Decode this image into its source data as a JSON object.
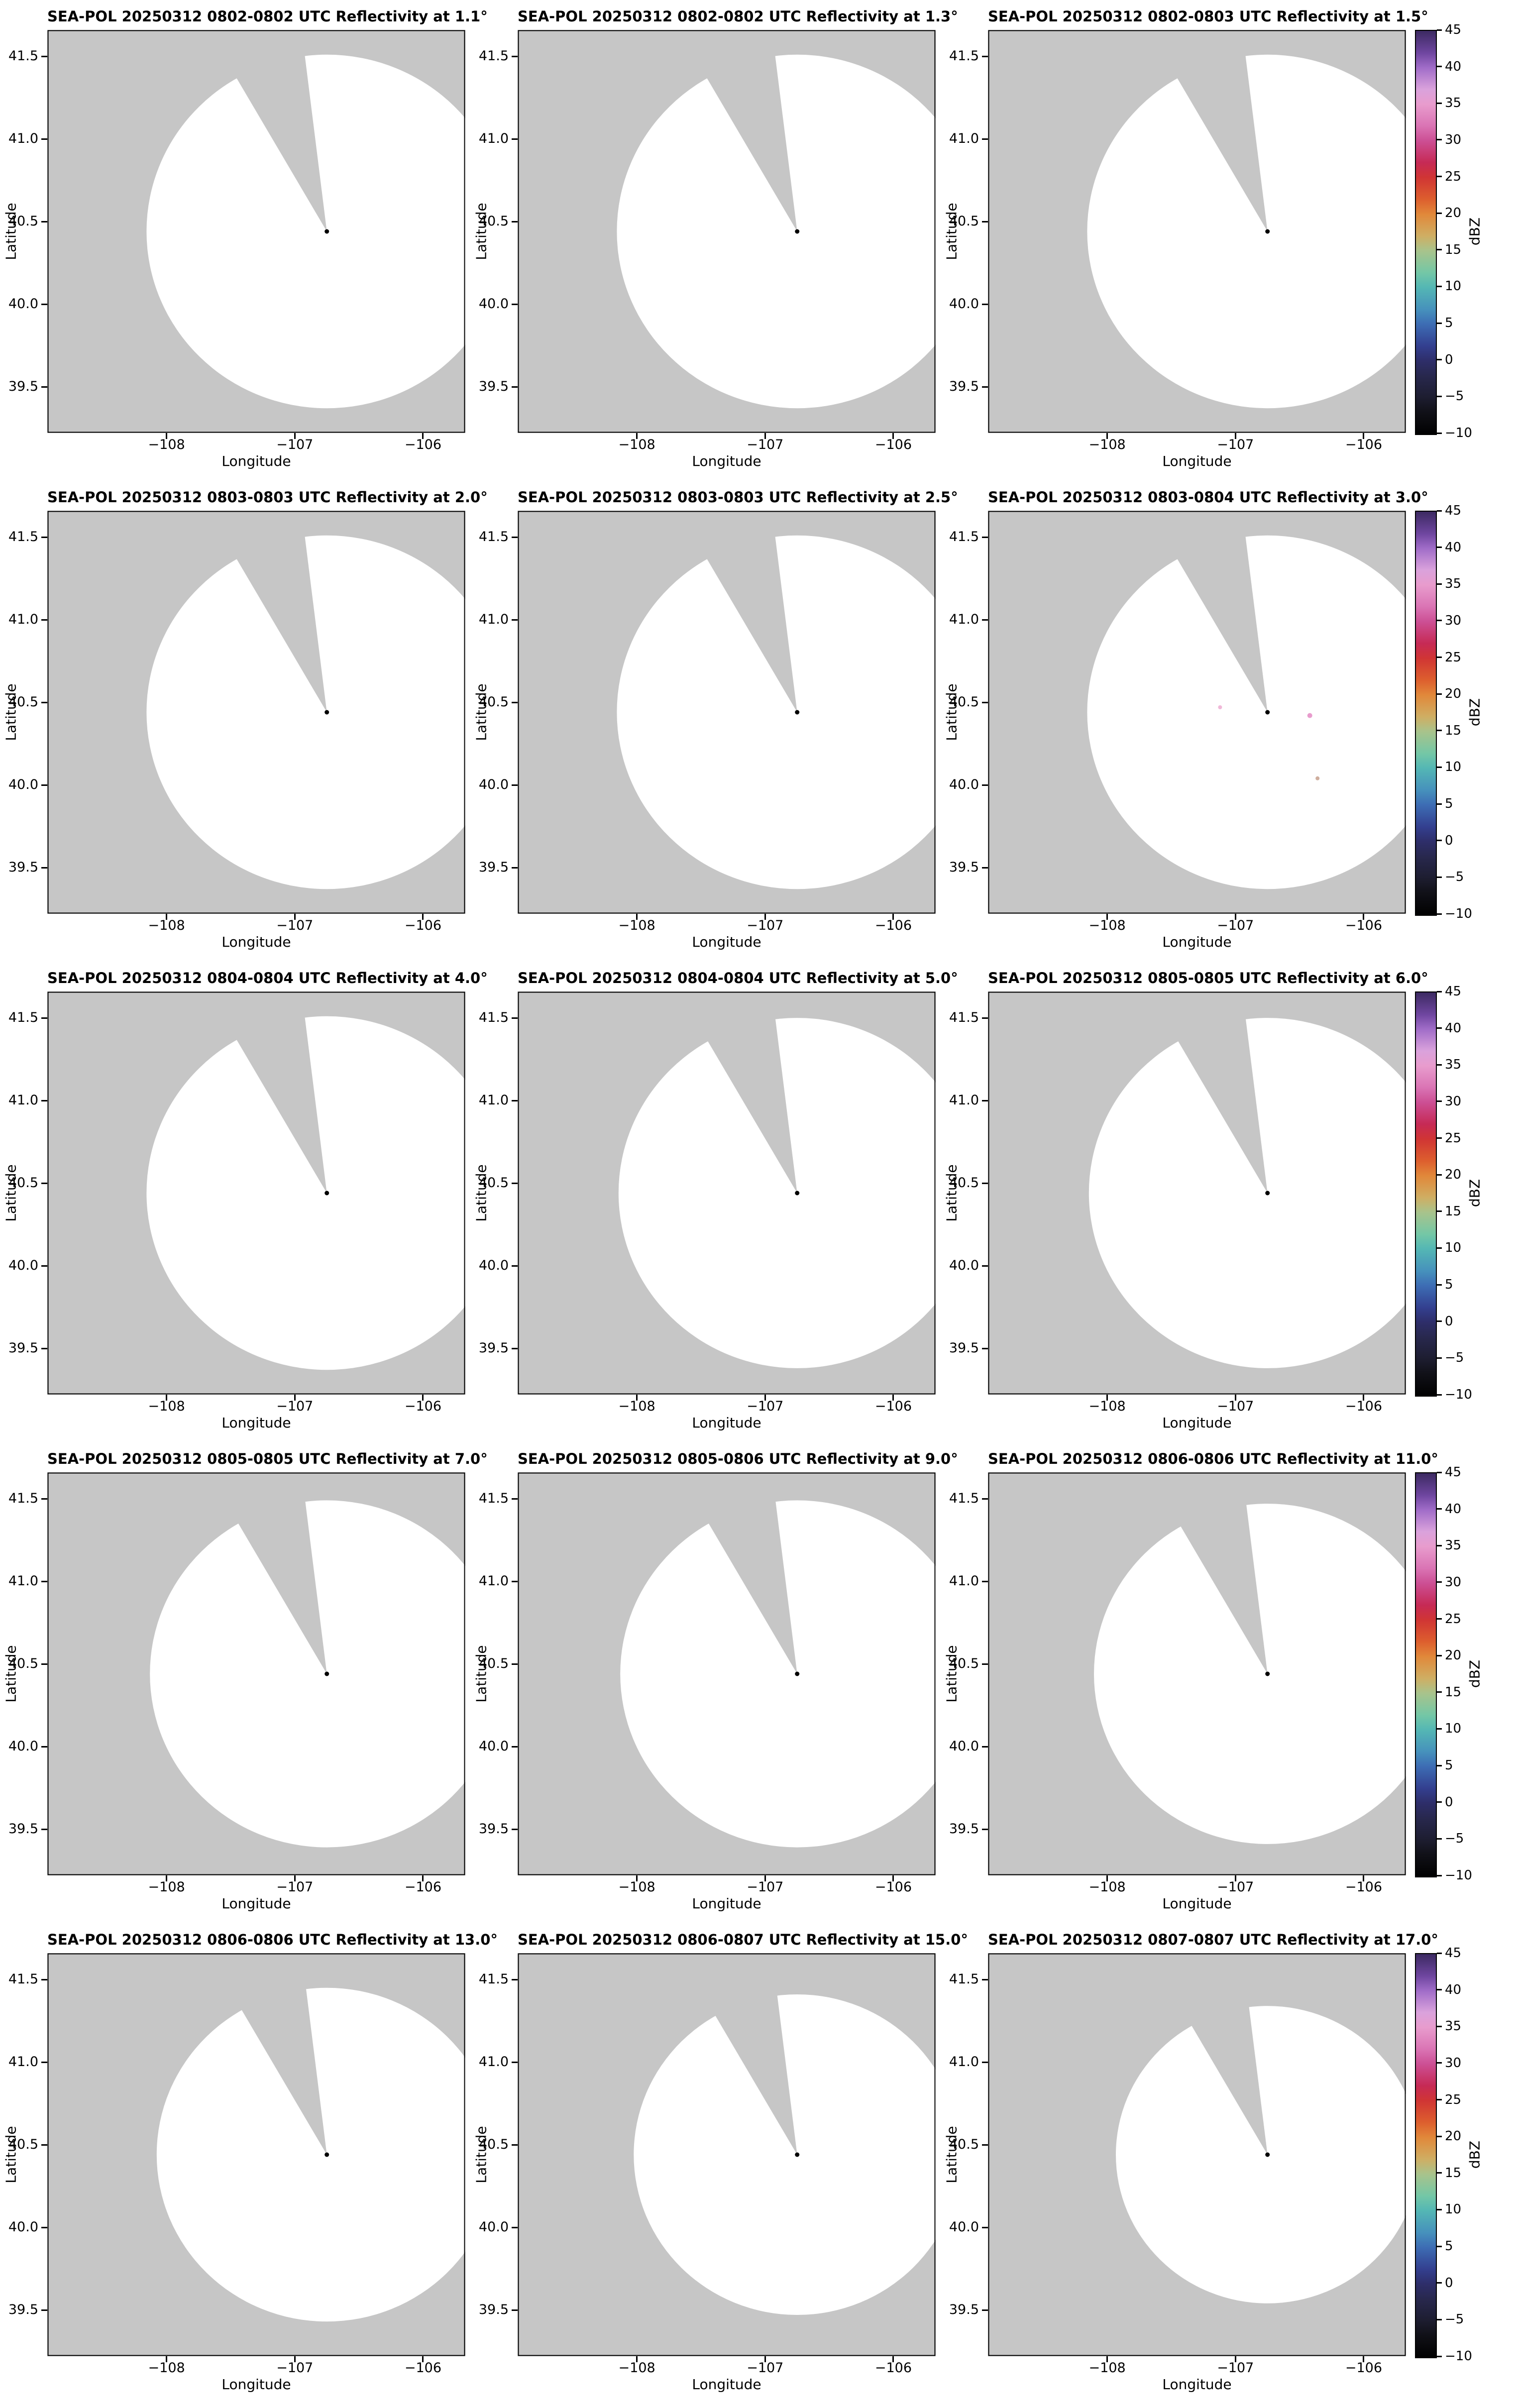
{
  "chart_data": {
    "type": "radar_ppi_small_multiples",
    "instrument": "SEA-POL",
    "date": "20250312",
    "grid": {
      "rows": 5,
      "cols": 3
    },
    "figure": {
      "xlabel": "Longitude",
      "ylabel": "Latitude",
      "xtick_labels": [
        "−108",
        "−107",
        "−106"
      ],
      "xtick_values": [
        -108,
        -107,
        -106
      ],
      "ytick_labels": [
        "39.5",
        "40.0",
        "40.5",
        "41.0",
        "41.5"
      ],
      "ytick_values": [
        39.5,
        40.0,
        40.5,
        41.0,
        41.5
      ],
      "xlim": [
        -108.93,
        -105.67
      ],
      "ylim": [
        39.22,
        41.66
      ],
      "background_color": "#c6c6c6",
      "coverage_color": "#ffffff",
      "radar": {
        "lon": -106.75,
        "lat": 40.44
      },
      "blocked_sector_az": [
        330,
        353
      ]
    },
    "colorbar": {
      "label": "dBZ",
      "min": -10,
      "max": 45,
      "tick_values": [
        45,
        40,
        35,
        30,
        25,
        20,
        15,
        10,
        5,
        0,
        -5,
        -10
      ],
      "tick_labels": [
        "45",
        "40",
        "35",
        "30",
        "25",
        "20",
        "15",
        "10",
        "5",
        "0",
        "−5",
        "−10"
      ],
      "stops": [
        {
          "v": -10,
          "c": "#010101"
        },
        {
          "v": -7,
          "c": "#111118"
        },
        {
          "v": -5,
          "c": "#1d1d30"
        },
        {
          "v": -2,
          "c": "#28284e"
        },
        {
          "v": 0,
          "c": "#2e2e6a"
        },
        {
          "v": 2,
          "c": "#333f8f"
        },
        {
          "v": 5,
          "c": "#3d6db4"
        },
        {
          "v": 7,
          "c": "#4691bc"
        },
        {
          "v": 10,
          "c": "#54b7b4"
        },
        {
          "v": 12,
          "c": "#74c7a6"
        },
        {
          "v": 15,
          "c": "#a9c38b"
        },
        {
          "v": 17,
          "c": "#cfae63"
        },
        {
          "v": 20,
          "c": "#e1883a"
        },
        {
          "v": 22,
          "c": "#dd5f2e"
        },
        {
          "v": 25,
          "c": "#d03534"
        },
        {
          "v": 27,
          "c": "#c62a55"
        },
        {
          "v": 30,
          "c": "#cc4f94"
        },
        {
          "v": 32,
          "c": "#da74b4"
        },
        {
          "v": 35,
          "c": "#e89ccd"
        },
        {
          "v": 37,
          "c": "#daa2dc"
        },
        {
          "v": 40,
          "c": "#a06cc8"
        },
        {
          "v": 42,
          "c": "#6f46a0"
        },
        {
          "v": 45,
          "c": "#3c2a62"
        }
      ]
    },
    "panels": [
      {
        "title": "SEA-POL 20250312 0802-0802 UTC Reflectivity at 1.1°",
        "elevation_deg": 1.1,
        "time_utc": "0802-0802",
        "coverage_radius_deg": 1.07
      },
      {
        "title": "SEA-POL 20250312 0802-0802 UTC Reflectivity at 1.3°",
        "elevation_deg": 1.3,
        "time_utc": "0802-0802",
        "coverage_radius_deg": 1.07
      },
      {
        "title": "SEA-POL 20250312 0802-0803 UTC Reflectivity at 1.5°",
        "elevation_deg": 1.5,
        "time_utc": "0802-0803",
        "coverage_radius_deg": 1.07
      },
      {
        "title": "SEA-POL 20250312 0803-0803 UTC Reflectivity at 2.0°",
        "elevation_deg": 2.0,
        "time_utc": "0803-0803",
        "coverage_radius_deg": 1.07
      },
      {
        "title": "SEA-POL 20250312 0803-0803 UTC Reflectivity at 2.5°",
        "elevation_deg": 2.5,
        "time_utc": "0803-0803",
        "coverage_radius_deg": 1.07
      },
      {
        "title": "SEA-POL 20250312 0803-0804 UTC Reflectivity at 3.0°",
        "elevation_deg": 3.0,
        "time_utc": "0803-0804",
        "coverage_radius_deg": 1.07,
        "echoes": [
          {
            "lon": -106.42,
            "lat": 40.42,
            "color": "#e89ccd",
            "r": 5
          },
          {
            "lon": -106.36,
            "lat": 40.04,
            "color": "#cfae9e",
            "r": 4
          },
          {
            "lon": -107.12,
            "lat": 40.47,
            "color": "#f0b8d8",
            "r": 4
          }
        ]
      },
      {
        "title": "SEA-POL 20250312 0804-0804 UTC Reflectivity at 4.0°",
        "elevation_deg": 4.0,
        "time_utc": "0804-0804",
        "coverage_radius_deg": 1.07
      },
      {
        "title": "SEA-POL 20250312 0804-0804 UTC Reflectivity at 5.0°",
        "elevation_deg": 5.0,
        "time_utc": "0804-0804",
        "coverage_radius_deg": 1.06
      },
      {
        "title": "SEA-POL 20250312 0805-0805 UTC Reflectivity at 6.0°",
        "elevation_deg": 6.0,
        "time_utc": "0805-0805",
        "coverage_radius_deg": 1.06
      },
      {
        "title": "SEA-POL 20250312 0805-0805 UTC Reflectivity at 7.0°",
        "elevation_deg": 7.0,
        "time_utc": "0805-0805",
        "coverage_radius_deg": 1.05
      },
      {
        "title": "SEA-POL 20250312 0805-0806 UTC Reflectivity at 9.0°",
        "elevation_deg": 9.0,
        "time_utc": "0805-0806",
        "coverage_radius_deg": 1.05
      },
      {
        "title": "SEA-POL 20250312 0806-0806 UTC Reflectivity at 11.0°",
        "elevation_deg": 11.0,
        "time_utc": "0806-0806",
        "coverage_radius_deg": 1.03
      },
      {
        "title": "SEA-POL 20250312 0806-0806 UTC Reflectivity at 13.0°",
        "elevation_deg": 13.0,
        "time_utc": "0806-0806",
        "coverage_radius_deg": 1.01
      },
      {
        "title": "SEA-POL 20250312 0806-0807 UTC Reflectivity at 15.0°",
        "elevation_deg": 15.0,
        "time_utc": "0806-0807",
        "coverage_radius_deg": 0.97
      },
      {
        "title": "SEA-POL 20250312 0807-0807 UTC Reflectivity at 17.0°",
        "elevation_deg": 17.0,
        "time_utc": "0807-0807",
        "coverage_radius_deg": 0.9
      }
    ]
  }
}
